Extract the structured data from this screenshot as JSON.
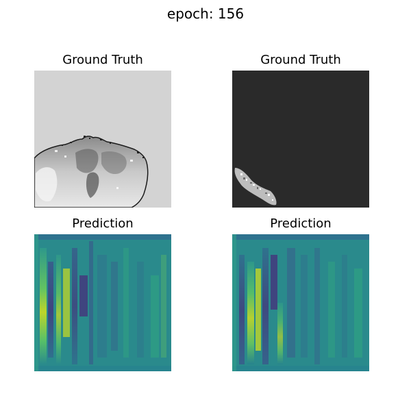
{
  "figure": {
    "title": "epoch: 156"
  },
  "panels": [
    {
      "title": "Ground Truth",
      "content": "grayscale MRI brain slice on light gray background"
    },
    {
      "title": "Ground Truth",
      "content": "small bright segmented region in bottom-left on dark background"
    },
    {
      "title": "Prediction",
      "content": "viridis heatmap with bright vertical streaks on left"
    },
    {
      "title": "Prediction",
      "content": "viridis heatmap with bright vertical streaks on left"
    }
  ],
  "colors": {
    "gt1_background": "#d3d3d3",
    "gt2_background": "#2a2a2a",
    "viridis_base": "#2a8a8c",
    "viridis_dark": "#3b3f8c",
    "viridis_bright": "#d7e219"
  }
}
